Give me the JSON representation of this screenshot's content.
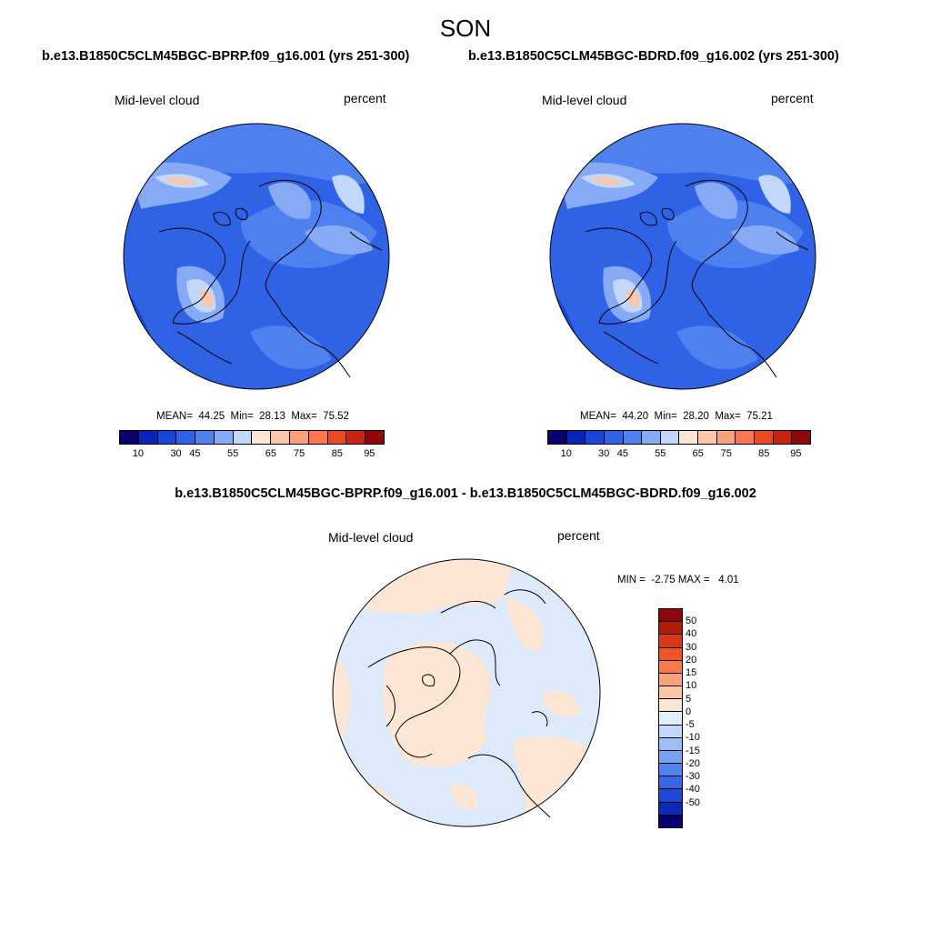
{
  "title": "SON",
  "panels": [
    {
      "case": "b.e13.B1850C5CLM45BGC-BPRP.f09_g16.001 (yrs 251-300)",
      "variable": "Mid-level cloud",
      "units": "percent",
      "mean_label": "MEAN=",
      "mean": "44.25",
      "min_label": "Min=",
      "min": "28.13",
      "max_label": "Max=",
      "max": "75.52"
    },
    {
      "case": "b.e13.B1850C5CLM45BGC-BDRD.f09_g16.002 (yrs 251-300)",
      "variable": "Mid-level cloud",
      "units": "percent",
      "mean_label": "MEAN=",
      "mean": "44.20",
      "min_label": "Min=",
      "min": "28.20",
      "max_label": "Max=",
      "max": "75.21"
    }
  ],
  "difference": {
    "title": "b.e13.B1850C5CLM45BGC-BPRP.f09_g16.001 - b.e13.B1850C5CLM45BGC-BDRD.f09_g16.002",
    "variable": "Mid-level cloud",
    "units": "percent",
    "min_label": "MIN =",
    "min": "-2.75",
    "max_label": "MAX =",
    "max": "4.01"
  },
  "colorbar_main": {
    "colors": [
      "#08006d",
      "#0a24b8",
      "#1846d6",
      "#2f62e4",
      "#4f80f0",
      "#86aaf6",
      "#c2d8fb",
      "#fde6d4",
      "#fcc6a8",
      "#fba27c",
      "#f87650",
      "#ea4a22",
      "#c82412",
      "#8c0808"
    ],
    "tick_labels": [
      "10",
      "30",
      "45",
      "55",
      "65",
      "75",
      "85",
      "95"
    ]
  },
  "colorbar_diff": {
    "colors": [
      "#8c0808",
      "#b01e08",
      "#d83818",
      "#f05428",
      "#f87a4c",
      "#fba27c",
      "#fcc6a8",
      "#fde6d4",
      "#e2eefc",
      "#c2d8fb",
      "#9ebef8",
      "#7aa2f4",
      "#5282ee",
      "#3666e4",
      "#1e48d6",
      "#0e28b8",
      "#08006d"
    ],
    "tick_labels": [
      "50",
      "40",
      "30",
      "20",
      "15",
      "10",
      "5",
      "0",
      "-5",
      "-10",
      "-15",
      "-20",
      "-30",
      "-40",
      "-50"
    ]
  },
  "colors": {
    "land_outline": "#000000",
    "diff_positive": "#fde6d4",
    "diff_negative": "#dceafc"
  }
}
